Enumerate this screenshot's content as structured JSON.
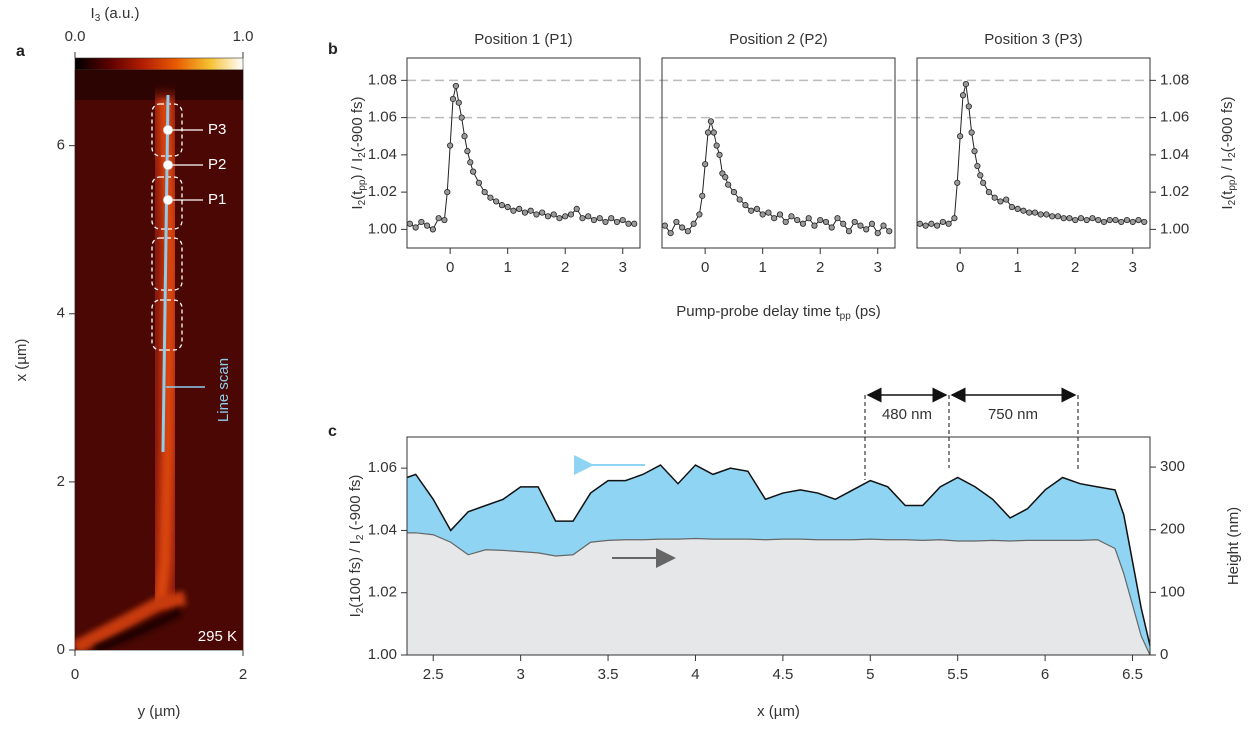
{
  "chart_data": [
    {
      "type": "image",
      "panel_label": "a",
      "colorbar_title": [
        "I",
        "3",
        " (a.u.)"
      ],
      "clim": [
        0,
        1
      ],
      "cticks": [
        {
          "value": 0,
          "label": "0.0"
        },
        {
          "value": 1,
          "label": "1.0"
        }
      ],
      "colormap": [
        "#000000",
        "#5a0000",
        "#b01c00",
        "#e85a00",
        "#f5c030",
        "#ffffff"
      ],
      "xlabel": "y (µm)",
      "ylabel": "x (µm)",
      "xlim": [
        0,
        2
      ],
      "xticks": [
        0,
        2
      ],
      "ylim": [
        0,
        6.9
      ],
      "yticks": [
        0,
        2,
        4,
        6
      ],
      "markers": [
        "P1",
        "P2",
        "P3"
      ],
      "annotations": [
        "Line scan",
        "295 K"
      ]
    },
    {
      "type": "line",
      "panel_label": "b",
      "xlabel": [
        "Pump-probe delay time t",
        "pp",
        " (ps)"
      ],
      "ylabel": [
        "I",
        "2",
        "(t",
        "pp",
        ") / I",
        "2",
        "(-900 fs)"
      ],
      "xlim": [
        -0.75,
        3.3
      ],
      "xticks": [
        0,
        1,
        2,
        3
      ],
      "ylim": [
        0.99,
        1.092
      ],
      "yticks": [
        {
          "value": 1,
          "label": "1.00"
        },
        1.02,
        1.04,
        1.06,
        1.08
      ],
      "reference_lines": [
        1.06,
        1.08
      ],
      "x": [
        -0.7,
        -0.6,
        -0.5,
        -0.4,
        -0.3,
        -0.2,
        -0.1,
        -0.05,
        0,
        0.05,
        0.1,
        0.15,
        0.2,
        0.25,
        0.3,
        0.35,
        0.4,
        0.5,
        0.6,
        0.7,
        0.8,
        0.9,
        1.0,
        1.1,
        1.2,
        1.3,
        1.4,
        1.5,
        1.6,
        1.7,
        1.8,
        1.9,
        2.0,
        2.1,
        2.2,
        2.3,
        2.4,
        2.5,
        2.6,
        2.7,
        2.8,
        2.9,
        3.0,
        3.1,
        3.2
      ],
      "series": [
        {
          "name": "Position 1 (P1)",
          "color": "#9a9a9a",
          "values": [
            1.003,
            1.001,
            1.004,
            1.002,
            1.0,
            1.006,
            1.005,
            1.02,
            1.045,
            1.07,
            1.077,
            1.068,
            1.06,
            1.05,
            1.042,
            1.036,
            1.031,
            1.025,
            1.02,
            1.017,
            1.015,
            1.013,
            1.012,
            1.01,
            1.011,
            1.009,
            1.01,
            1.008,
            1.009,
            1.007,
            1.008,
            1.006,
            1.007,
            1.008,
            1.011,
            1.006,
            1.007,
            1.005,
            1.006,
            1.004,
            1.006,
            1.004,
            1.005,
            1.003,
            1.003
          ]
        },
        {
          "name": "Position 2 (P2)",
          "color": "#9a9a9a",
          "values": [
            1.002,
            0.998,
            1.004,
            1.001,
            0.999,
            1.003,
            1.008,
            1.018,
            1.035,
            1.052,
            1.058,
            1.052,
            1.045,
            1.04,
            1.03,
            1.028,
            1.024,
            1.02,
            1.016,
            1.013,
            1.01,
            1.011,
            1.008,
            1.009,
            1.006,
            1.008,
            1.004,
            1.007,
            1.005,
            1.003,
            1.006,
            1.002,
            1.005,
            1.004,
            1.001,
            1.006,
            1.003,
            0.999,
            1.004,
            1.002,
            1.0,
            1.003,
            0.998,
            1.002,
            0.999
          ]
        },
        {
          "name": "Position 3 (P3)",
          "color": "#9a9a9a",
          "values": [
            1.003,
            1.002,
            1.003,
            1.002,
            1.004,
            1.003,
            1.006,
            1.025,
            1.05,
            1.072,
            1.078,
            1.066,
            1.052,
            1.042,
            1.034,
            1.029,
            1.025,
            1.02,
            1.017,
            1.015,
            1.016,
            1.012,
            1.011,
            1.01,
            1.009,
            1.009,
            1.008,
            1.008,
            1.007,
            1.007,
            1.006,
            1.006,
            1.005,
            1.006,
            1.005,
            1.006,
            1.005,
            1.004,
            1.005,
            1.005,
            1.004,
            1.005,
            1.004,
            1.005,
            1.004
          ]
        }
      ]
    },
    {
      "type": "area",
      "panel_label": "c",
      "xlabel": "x (µm)",
      "ylabel": [
        "I",
        "2",
        "(100 fs) / I",
        "2",
        " (-900 fs)"
      ],
      "y2label": "Height (nm)",
      "xlim": [
        2.35,
        6.6
      ],
      "xticks": [
        2.5,
        3.0,
        3.5,
        4.0,
        4.5,
        5.0,
        5.5,
        6.0,
        6.5
      ],
      "ylim": [
        1.0,
        1.07
      ],
      "yticks": [
        {
          "value": 1,
          "label": "1.00"
        },
        1.02,
        1.04,
        1.06
      ],
      "y2lim": [
        0,
        348
      ],
      "y2ticks": [
        0,
        100,
        200,
        300
      ],
      "annotations": [
        "480 nm",
        "750 nm"
      ],
      "x": [
        2.35,
        2.4,
        2.5,
        2.6,
        2.7,
        2.8,
        2.9,
        3.0,
        3.1,
        3.2,
        3.3,
        3.4,
        3.5,
        3.6,
        3.7,
        3.8,
        3.9,
        4.0,
        4.1,
        4.2,
        4.3,
        4.4,
        4.5,
        4.6,
        4.7,
        4.8,
        4.9,
        5.0,
        5.1,
        5.2,
        5.3,
        5.4,
        5.5,
        5.6,
        5.7,
        5.8,
        5.9,
        6.0,
        6.1,
        6.2,
        6.3,
        6.4,
        6.45,
        6.5,
        6.55,
        6.6
      ],
      "series": [
        {
          "color": "#8fd5f3",
          "line_color": "#111111",
          "values": [
            1.057,
            1.058,
            1.05,
            1.04,
            1.046,
            1.048,
            1.05,
            1.054,
            1.054,
            1.043,
            1.043,
            1.052,
            1.056,
            1.056,
            1.058,
            1.061,
            1.055,
            1.061,
            1.058,
            1.06,
            1.059,
            1.05,
            1.052,
            1.053,
            1.052,
            1.05,
            1.053,
            1.056,
            1.054,
            1.048,
            1.048,
            1.054,
            1.057,
            1.054,
            1.05,
            1.044,
            1.047,
            1.053,
            1.057,
            1.055,
            1.054,
            1.053,
            1.045,
            1.03,
            1.015,
            1.003
          ]
        },
        {
          "color": "#e6e7e9",
          "line_color": "#666666",
          "axis": "y2",
          "values": [
            195,
            195,
            192,
            180,
            160,
            168,
            167,
            165,
            163,
            158,
            160,
            180,
            183,
            184,
            184,
            185,
            185,
            186,
            185,
            185,
            185,
            184,
            185,
            185,
            184,
            184,
            184,
            185,
            184,
            184,
            183,
            184,
            182,
            182,
            183,
            182,
            183,
            183,
            183,
            183,
            184,
            170,
            130,
            80,
            30,
            0
          ]
        }
      ]
    }
  ]
}
